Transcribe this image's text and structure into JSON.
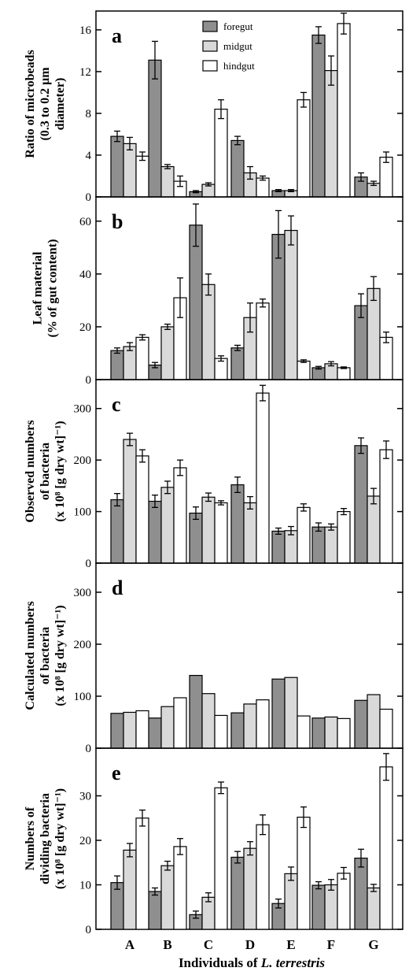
{
  "legend": {
    "items": [
      "foregut",
      "midgut",
      "hindgut"
    ]
  },
  "colors": {
    "foregut": "#8f8f8f",
    "midgut": "#d9d9d9",
    "hindgut": "#ffffff",
    "axis": "#000000"
  },
  "xlabel_prefix": "Individuals of ",
  "xlabel_species": "L. terrestris",
  "chart_data": [
    {
      "type": "bar",
      "panel": "a",
      "ylabel_lines": [
        "Ratio of microbeads",
        "(0.3 to 0.2 μm",
        "diameter)"
      ],
      "categories": [
        "A",
        "B",
        "C",
        "D",
        "E",
        "F",
        "G"
      ],
      "ylim": [
        0,
        17.5
      ],
      "yticks": [
        "0",
        "4",
        "8",
        "12",
        "16"
      ],
      "ytick_values": [
        0,
        4,
        8,
        12,
        16
      ],
      "series": [
        {
          "name": "foregut",
          "values": [
            5.8,
            13.1,
            0.5,
            5.4,
            0.6,
            15.5,
            1.9
          ],
          "errors": [
            0.5,
            1.8,
            0.1,
            0.4,
            0.1,
            0.8,
            0.4
          ]
        },
        {
          "name": "midgut",
          "values": [
            5.1,
            2.9,
            1.2,
            2.3,
            0.6,
            12.1,
            1.3
          ],
          "errors": [
            0.6,
            0.2,
            0.15,
            0.6,
            0.1,
            1.4,
            0.2
          ]
        },
        {
          "name": "hindgut",
          "values": [
            3.9,
            1.5,
            8.4,
            1.8,
            9.3,
            16.6,
            3.8
          ],
          "errors": [
            0.4,
            0.5,
            0.9,
            0.2,
            0.7,
            1.0,
            0.5
          ]
        }
      ]
    },
    {
      "type": "bar",
      "panel": "b",
      "ylabel_lines": [
        "Leaf material",
        "(% of gut content)"
      ],
      "categories": [
        "A",
        "B",
        "C",
        "D",
        "E",
        "F",
        "G"
      ],
      "ylim": [
        0,
        68
      ],
      "yticks": [
        "0",
        "20",
        "40",
        "60"
      ],
      "ytick_values": [
        0,
        20,
        40,
        60
      ],
      "series": [
        {
          "name": "foregut",
          "values": [
            11,
            5.5,
            58.5,
            12,
            55,
            4.5,
            28
          ],
          "errors": [
            1,
            1,
            8,
            1,
            9,
            0.5,
            4.5
          ]
        },
        {
          "name": "midgut",
          "values": [
            12.5,
            20,
            36,
            23.5,
            56.5,
            6,
            34.5
          ],
          "errors": [
            1.5,
            1,
            4,
            5.5,
            5.5,
            0.8,
            4.5
          ]
        },
        {
          "name": "hindgut",
          "values": [
            16,
            31,
            8,
            29,
            7,
            4.5,
            16
          ],
          "errors": [
            1,
            7.5,
            1,
            1.5,
            0.5,
            0.3,
            2
          ]
        }
      ]
    },
    {
      "type": "bar",
      "panel": "c",
      "ylabel_lines": [
        "Observed numbers",
        "of bacteria",
        "(x 10⁸ [g dry wt]⁻¹)"
      ],
      "categories": [
        "A",
        "B",
        "C",
        "D",
        "E",
        "F",
        "G"
      ],
      "ylim": [
        0,
        350
      ],
      "yticks": [
        "0",
        "100",
        "200",
        "300"
      ],
      "ytick_values": [
        0,
        100,
        200,
        300
      ],
      "series": [
        {
          "name": "foregut",
          "values": [
            123,
            120,
            97,
            152,
            62,
            70,
            228
          ],
          "errors": [
            12,
            12,
            12,
            15,
            6,
            8,
            15
          ]
        },
        {
          "name": "midgut",
          "values": [
            240,
            147,
            128,
            117,
            63,
            70,
            130
          ],
          "errors": [
            12,
            12,
            8,
            12,
            8,
            6,
            15
          ]
        },
        {
          "name": "hindgut",
          "values": [
            208,
            185,
            117,
            330,
            108,
            100,
            220
          ],
          "errors": [
            12,
            15,
            4,
            15,
            7,
            6,
            17
          ]
        }
      ]
    },
    {
      "type": "bar",
      "panel": "d",
      "ylabel_lines": [
        "Calculated numbers",
        "of bacteria",
        "(x 10⁸ [g dry wt]⁻¹)"
      ],
      "categories": [
        "A",
        "B",
        "C",
        "D",
        "E",
        "F",
        "G"
      ],
      "ylim": [
        0,
        350
      ],
      "yticks": [
        "0",
        "100",
        "200",
        "300"
      ],
      "ytick_values": [
        0,
        100,
        200,
        300
      ],
      "series": [
        {
          "name": "foregut",
          "values": [
            67,
            58,
            140,
            68,
            133,
            58,
            92
          ]
        },
        {
          "name": "midgut",
          "values": [
            69,
            80,
            105,
            85,
            136,
            60,
            103
          ]
        },
        {
          "name": "hindgut",
          "values": [
            72,
            97,
            63,
            93,
            62,
            57,
            75
          ]
        }
      ]
    },
    {
      "type": "bar",
      "panel": "e",
      "ylabel_lines": [
        "Numbers of",
        "dividing bacteria",
        "(x 10⁸ [g dry wt]⁻¹)"
      ],
      "categories": [
        "A",
        "B",
        "C",
        "D",
        "E",
        "F",
        "G"
      ],
      "ylim": [
        0,
        40
      ],
      "yticks": [
        "0",
        "10",
        "20",
        "30"
      ],
      "ytick_values": [
        0,
        10,
        20,
        30
      ],
      "series": [
        {
          "name": "foregut",
          "values": [
            10.5,
            8.5,
            3.3,
            16.2,
            5.8,
            9.9,
            16
          ],
          "errors": [
            1.5,
            0.8,
            0.8,
            1.3,
            1,
            0.8,
            2
          ]
        },
        {
          "name": "midgut",
          "values": [
            17.8,
            14.3,
            7.2,
            18.2,
            12.5,
            10,
            9.3
          ],
          "errors": [
            1.5,
            1,
            1,
            1.5,
            1.5,
            1.2,
            0.8
          ]
        },
        {
          "name": "hindgut",
          "values": [
            25,
            18.6,
            31.8,
            23.5,
            25.2,
            12.6,
            36.5
          ],
          "errors": [
            1.8,
            1.8,
            1.3,
            2.2,
            2.3,
            1.3,
            3
          ]
        }
      ]
    }
  ]
}
